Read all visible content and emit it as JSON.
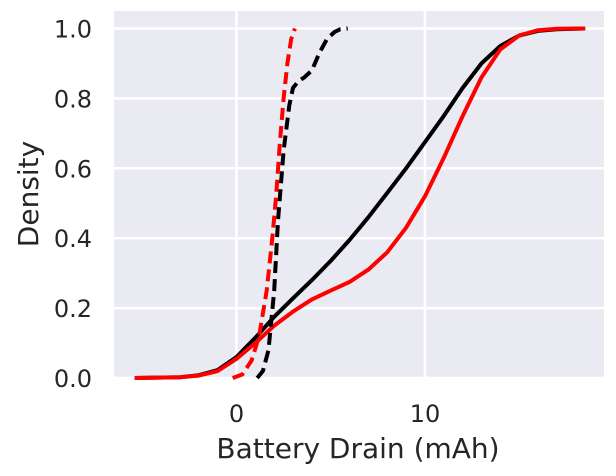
{
  "chart_data": {
    "type": "line",
    "title": "",
    "xlabel": "Battery Drain (mAh)",
    "ylabel": "Density",
    "xlim": [
      -6.5,
      19.5
    ],
    "ylim": [
      0,
      1.05
    ],
    "xticks": [
      0,
      10
    ],
    "xtick_labels": [
      "0",
      "10"
    ],
    "yticks": [
      0.0,
      0.2,
      0.4,
      0.6,
      0.8,
      1.0
    ],
    "ytick_labels": [
      "0.0",
      "0.2",
      "0.4",
      "0.6",
      "0.8",
      "1.0"
    ],
    "grid": true,
    "background": "#eaeaf2",
    "series": [
      {
        "color": "#000000",
        "dash": "solid",
        "x": [
          -5.4,
          -3,
          -2,
          -1,
          0,
          1,
          2,
          3,
          4,
          5,
          6,
          7,
          8,
          9,
          10,
          11,
          12,
          13,
          14,
          15,
          16,
          17,
          18.5
        ],
        "y": [
          0.0,
          0.002,
          0.008,
          0.023,
          0.06,
          0.115,
          0.175,
          0.228,
          0.28,
          0.335,
          0.395,
          0.46,
          0.53,
          0.6,
          0.675,
          0.75,
          0.83,
          0.9,
          0.95,
          0.98,
          0.993,
          0.998,
          1.0
        ]
      },
      {
        "color": "#ff0000",
        "dash": "solid",
        "x": [
          -5.4,
          -3,
          -2,
          -1,
          0,
          1,
          2,
          3,
          4,
          5,
          6,
          7,
          8,
          9,
          10,
          11,
          12,
          13,
          14,
          15,
          16,
          17,
          18.5
        ],
        "y": [
          0.0,
          0.002,
          0.007,
          0.02,
          0.055,
          0.1,
          0.15,
          0.19,
          0.225,
          0.25,
          0.275,
          0.31,
          0.36,
          0.43,
          0.52,
          0.63,
          0.75,
          0.86,
          0.94,
          0.98,
          0.995,
          0.999,
          1.0
        ]
      },
      {
        "color": "#000000",
        "dash": "dashed",
        "x": [
          1.1,
          1.4,
          1.7,
          2.0,
          2.2,
          2.5,
          2.8,
          3.0,
          3.3,
          3.6,
          4.0,
          4.4,
          4.8,
          5.2,
          5.5,
          5.9
        ],
        "y": [
          0.0,
          0.02,
          0.08,
          0.25,
          0.45,
          0.65,
          0.78,
          0.83,
          0.85,
          0.86,
          0.88,
          0.93,
          0.97,
          0.99,
          0.998,
          1.0
        ]
      },
      {
        "color": "#ff0000",
        "dash": "dashed",
        "x": [
          -0.2,
          0.3,
          0.8,
          1.2,
          1.6,
          1.9,
          2.1,
          2.3,
          2.5,
          2.7,
          2.9,
          3.1
        ],
        "y": [
          0.0,
          0.01,
          0.05,
          0.12,
          0.25,
          0.4,
          0.52,
          0.67,
          0.8,
          0.9,
          0.97,
          1.0
        ]
      }
    ]
  }
}
